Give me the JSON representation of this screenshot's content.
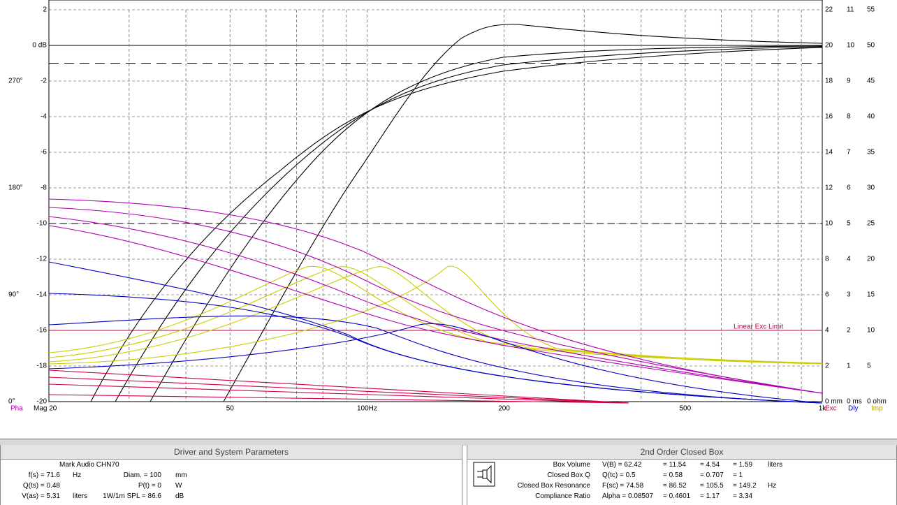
{
  "chart": {
    "y_labels": [
      "2",
      "0 dB",
      "-2",
      "-4",
      "-6",
      "-8",
      "-10",
      "-12",
      "-14",
      "-16",
      "-18",
      "-20"
    ],
    "phase_labels": [
      "270°",
      "180°",
      "90°",
      "0°"
    ],
    "right_labels": [
      [
        "22",
        "11",
        "55"
      ],
      [
        "20",
        "10",
        "50"
      ],
      [
        "18",
        "9",
        "45"
      ],
      [
        "16",
        "8",
        "40"
      ],
      [
        "14",
        "7",
        "35"
      ],
      [
        "12",
        "6",
        "30"
      ],
      [
        "10",
        "5",
        "25"
      ],
      [
        "8",
        "4",
        "20"
      ],
      [
        "6",
        "3",
        "15"
      ],
      [
        "4",
        "2",
        "10"
      ],
      [
        "2",
        "1",
        "5"
      ],
      [
        "0 mm",
        "0 ms",
        "0 ohm"
      ]
    ],
    "x_labels": [
      "50",
      "100Hz",
      "200",
      "500",
      "1k"
    ],
    "left_footer": [
      "Pha",
      "Mag 20"
    ],
    "right_footer": [
      "Exc",
      "Dly",
      "Imp"
    ],
    "limit_label": "Linear Exc Limit"
  },
  "driver_panel": {
    "title": "Driver and System Parameters",
    "model": "Mark Audio CHN70",
    "rows": [
      [
        "f(s) = 71.6",
        "Hz",
        "Diam. = 100",
        "mm"
      ],
      [
        "Q(ts) = 0.48",
        "",
        "P(t) = 0",
        "W"
      ],
      [
        "V(as) = 5.31",
        "liters",
        "1W/1m SPL = 86.6",
        "dB"
      ]
    ]
  },
  "box_panel": {
    "title": "2nd Order Closed Box",
    "rows": [
      [
        "Box Volume",
        "V(B) = 62.42",
        "= 11.54",
        "= 4.54",
        "= 1.59",
        "liters"
      ],
      [
        "Closed Box Q",
        "Q(tc) = 0.5",
        "= 0.58",
        "= 0.707",
        "= 1",
        ""
      ],
      [
        "Closed Box Resonance",
        "F(sc) = 74.58",
        "= 86.52",
        "= 105.5",
        "= 149.2",
        "Hz"
      ],
      [
        "Compliance Ratio",
        "Alpha = 0.08507",
        "= 0.4601",
        "= 1.17",
        "= 3.34",
        ""
      ]
    ]
  }
}
